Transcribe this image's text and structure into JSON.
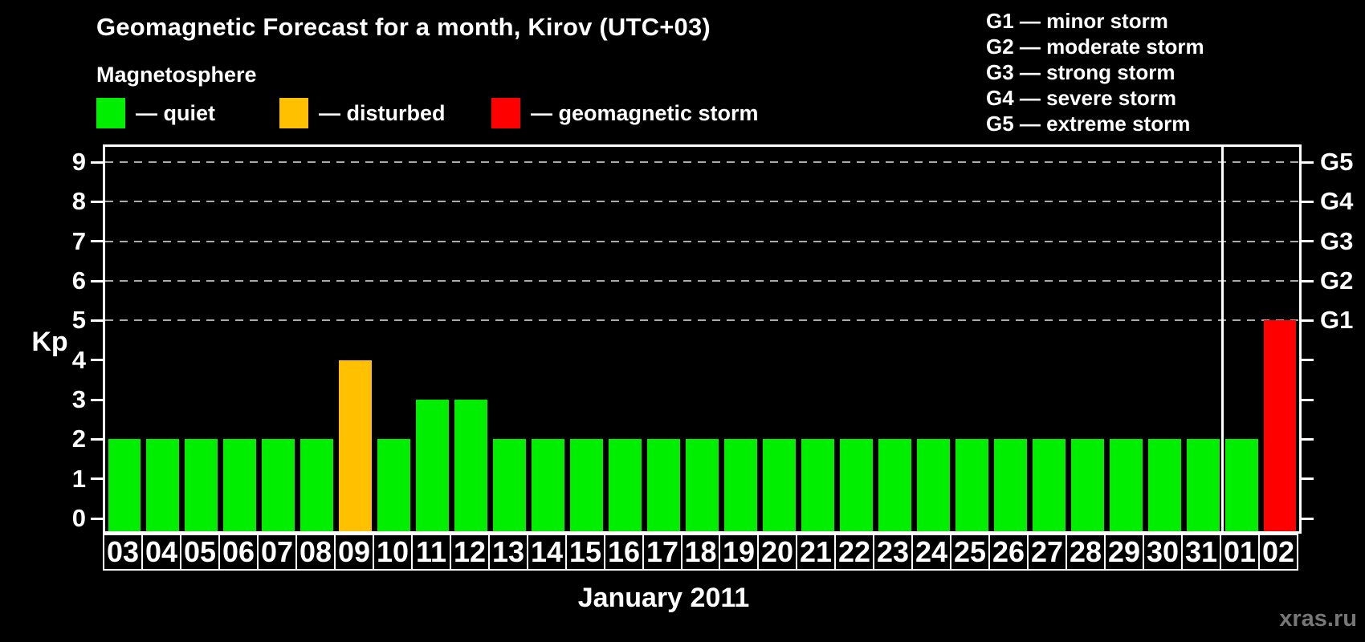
{
  "header": {
    "title": "Geomagnetic Forecast for a month, Kirov (UTC+03)",
    "magnetosphere_label": "Magnetosphere",
    "legend": {
      "items": [
        {
          "label": "— quiet",
          "status": "quiet",
          "color": "#00EE00"
        },
        {
          "label": "— disturbed",
          "status": "disturbed",
          "color": "#FFC000"
        },
        {
          "label": "— geomagnetic storm",
          "status": "storm",
          "color": "#FF0000"
        }
      ]
    },
    "g_scale_legend": [
      {
        "text": "G1 — minor storm"
      },
      {
        "text": "G2 — moderate storm"
      },
      {
        "text": "G3 — strong storm"
      },
      {
        "text": "G4 — severe storm"
      },
      {
        "text": "G5 — extreme storm"
      }
    ]
  },
  "chart_data": {
    "type": "bar",
    "title": "Geomagnetic Forecast for a month, Kirov (UTC+03)",
    "categories": [
      "03",
      "04",
      "05",
      "06",
      "07",
      "08",
      "09",
      "10",
      "11",
      "12",
      "13",
      "14",
      "15",
      "16",
      "17",
      "18",
      "19",
      "20",
      "21",
      "22",
      "23",
      "24",
      "25",
      "26",
      "27",
      "28",
      "29",
      "30",
      "31",
      "01",
      "02"
    ],
    "values": [
      2,
      2,
      2,
      2,
      2,
      2,
      4,
      2,
      3,
      3,
      2,
      2,
      2,
      2,
      2,
      2,
      2,
      2,
      2,
      2,
      2,
      2,
      2,
      2,
      2,
      2,
      2,
      2,
      2,
      2,
      5
    ],
    "statuses": [
      "quiet",
      "quiet",
      "quiet",
      "quiet",
      "quiet",
      "quiet",
      "disturbed",
      "quiet",
      "quiet",
      "quiet",
      "quiet",
      "quiet",
      "quiet",
      "quiet",
      "quiet",
      "quiet",
      "quiet",
      "quiet",
      "quiet",
      "quiet",
      "quiet",
      "quiet",
      "quiet",
      "quiet",
      "quiet",
      "quiet",
      "quiet",
      "quiet",
      "quiet",
      "quiet",
      "storm"
    ],
    "status_colors": {
      "quiet": "#00EE00",
      "disturbed": "#FFC000",
      "storm": "#FF0000"
    },
    "ylabel": "Kp",
    "xlabel": "January 2011",
    "ylim": [
      0,
      9
    ],
    "yticks": [
      0,
      1,
      2,
      3,
      4,
      5,
      6,
      7,
      8,
      9
    ],
    "gridlines": [
      5,
      6,
      7,
      8,
      9
    ],
    "grid_style": "dashed",
    "right_axis_labels": [
      {
        "value": 5,
        "label": "G1"
      },
      {
        "value": 6,
        "label": "G2"
      },
      {
        "value": 7,
        "label": "G3"
      },
      {
        "value": 8,
        "label": "G4"
      },
      {
        "value": 9,
        "label": "G5"
      }
    ],
    "month_separator_after_index": 28,
    "legend_position": "top-left"
  },
  "watermark": "xras.ru",
  "colors": {
    "background": "#000000",
    "text": "#FFFFFF",
    "grid": "#AAAAAA",
    "axis": "#FFFFFF",
    "watermark": "#777777"
  }
}
